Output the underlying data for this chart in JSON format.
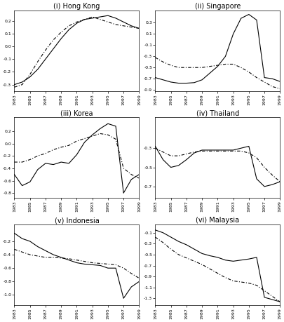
{
  "years": [
    1983,
    1984,
    1985,
    1986,
    1987,
    1988,
    1989,
    1990,
    1991,
    1992,
    1993,
    1994,
    1995,
    1996,
    1997,
    1998,
    1999
  ],
  "panels": [
    {
      "title": "(i) Hong Kong",
      "actual": [
        -0.3,
        -0.28,
        -0.24,
        -0.18,
        -0.1,
        -0.02,
        0.06,
        0.13,
        0.18,
        0.21,
        0.22,
        0.23,
        0.24,
        0.22,
        0.19,
        0.16,
        0.14
      ],
      "predicted": [
        -0.32,
        -0.3,
        -0.22,
        -0.12,
        -0.03,
        0.05,
        0.11,
        0.16,
        0.19,
        0.21,
        0.23,
        0.21,
        0.19,
        0.17,
        0.16,
        0.15,
        0.14
      ],
      "ylim": [
        -0.35,
        0.28
      ],
      "yticks": [
        -0.3,
        -0.2,
        -0.1,
        0.0,
        0.1,
        0.2
      ]
    },
    {
      "title": "(ii) Singapore",
      "actual": [
        -0.68,
        -0.72,
        -0.76,
        -0.78,
        -0.78,
        -0.77,
        -0.72,
        -0.6,
        -0.48,
        -0.3,
        0.1,
        0.38,
        0.45,
        0.35,
        -0.68,
        -0.7,
        -0.75
      ],
      "predicted": [
        -0.32,
        -0.4,
        -0.46,
        -0.5,
        -0.5,
        -0.5,
        -0.5,
        -0.48,
        -0.46,
        -0.44,
        -0.44,
        -0.5,
        -0.58,
        -0.68,
        -0.76,
        -0.84,
        -0.88
      ],
      "ylim": [
        -0.92,
        0.52
      ],
      "yticks": [
        -0.9,
        -0.7,
        -0.5,
        -0.3,
        -0.1,
        0.1,
        0.3
      ]
    },
    {
      "title": "(iii) Korea",
      "actual": [
        -0.5,
        -0.68,
        -0.62,
        -0.42,
        -0.32,
        -0.34,
        -0.3,
        -0.32,
        -0.18,
        0.02,
        0.14,
        0.24,
        0.32,
        0.28,
        -0.8,
        -0.58,
        -0.5
      ],
      "predicted": [
        -0.3,
        -0.3,
        -0.26,
        -0.2,
        -0.16,
        -0.1,
        -0.06,
        -0.03,
        0.04,
        0.08,
        0.12,
        0.16,
        0.14,
        0.07,
        -0.4,
        -0.5,
        -0.56
      ],
      "ylim": [
        -0.88,
        0.42
      ],
      "yticks": [
        -0.8,
        -0.6,
        -0.4,
        -0.2,
        0.0,
        0.2
      ]
    },
    {
      "title": "(iv) Thailand",
      "actual": [
        -0.28,
        -0.42,
        -0.5,
        -0.48,
        -0.42,
        -0.35,
        -0.32,
        -0.32,
        -0.32,
        -0.32,
        -0.32,
        -0.3,
        -0.28,
        -0.62,
        -0.7,
        -0.68,
        -0.65
      ],
      "predicted": [
        -0.3,
        -0.34,
        -0.38,
        -0.38,
        -0.36,
        -0.34,
        -0.33,
        -0.33,
        -0.33,
        -0.33,
        -0.33,
        -0.33,
        -0.35,
        -0.4,
        -0.5,
        -0.58,
        -0.65
      ],
      "ylim": [
        -0.82,
        0.02
      ],
      "yticks": [
        -0.7,
        -0.5,
        -0.3
      ]
    },
    {
      "title": "(v) Indonesia",
      "actual": [
        -0.08,
        -0.16,
        -0.2,
        -0.28,
        -0.34,
        -0.4,
        -0.44,
        -0.48,
        -0.52,
        -0.54,
        -0.55,
        -0.56,
        -0.6,
        -0.6,
        -1.05,
        -0.88,
        -0.8
      ],
      "predicted": [
        -0.32,
        -0.36,
        -0.4,
        -0.42,
        -0.44,
        -0.44,
        -0.45,
        -0.46,
        -0.48,
        -0.5,
        -0.52,
        -0.53,
        -0.54,
        -0.55,
        -0.6,
        -0.68,
        -0.75
      ],
      "ylim": [
        -1.15,
        0.05
      ],
      "yticks": [
        -1.0,
        -0.8,
        -0.6,
        -0.4,
        -0.2
      ]
    },
    {
      "title": "(vi) Malaysia",
      "actual": [
        -0.05,
        -0.1,
        -0.18,
        -0.26,
        -0.32,
        -0.4,
        -0.48,
        -0.52,
        -0.55,
        -0.6,
        -0.62,
        -0.6,
        -0.58,
        -0.55,
        -1.28,
        -1.32,
        -1.36
      ],
      "predicted": [
        -0.18,
        -0.28,
        -0.4,
        -0.5,
        -0.56,
        -0.62,
        -0.68,
        -0.76,
        -0.84,
        -0.92,
        -0.98,
        -1.0,
        -1.02,
        -1.06,
        -1.16,
        -1.26,
        -1.36
      ],
      "ylim": [
        -1.42,
        0.05
      ],
      "yticks": [
        -1.3,
        -1.1,
        -0.9,
        -0.7,
        -0.5,
        -0.3,
        -0.1
      ]
    }
  ],
  "x_ticks": [
    1983,
    1985,
    1987,
    1989,
    1991,
    1993,
    1995,
    1997,
    1999
  ],
  "x_tick_labels": [
    "1983",
    "1985",
    "1987",
    "1989",
    "1991",
    "1993",
    "1995",
    "1997",
    "1999"
  ],
  "line_color": "black",
  "actual_style": "-",
  "predicted_style": "-.",
  "linewidth": 0.8,
  "title_fontsize": 7,
  "tick_fontsize": 4.5
}
